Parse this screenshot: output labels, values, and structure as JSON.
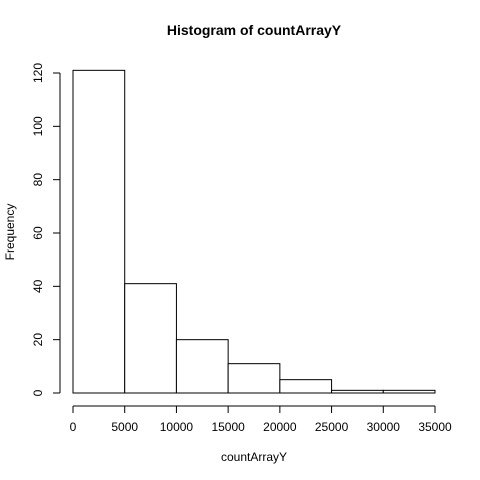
{
  "chart_data": {
    "type": "bar",
    "title": "Histogram of countArrayY",
    "xlabel": "countArrayY",
    "ylabel": "Frequency",
    "bins": [
      {
        "x0": 0,
        "x1": 5000,
        "count": 121
      },
      {
        "x0": 5000,
        "x1": 10000,
        "count": 41
      },
      {
        "x0": 10000,
        "x1": 15000,
        "count": 20
      },
      {
        "x0": 15000,
        "x1": 20000,
        "count": 11
      },
      {
        "x0": 20000,
        "x1": 25000,
        "count": 5
      },
      {
        "x0": 25000,
        "x1": 30000,
        "count": 1
      },
      {
        "x0": 30000,
        "x1": 35000,
        "count": 1
      }
    ],
    "xlim": [
      0,
      35000
    ],
    "ylim": [
      0,
      120
    ],
    "xticks": [
      "0",
      "5000",
      "10000",
      "15000",
      "20000",
      "25000",
      "30000",
      "35000"
    ],
    "yticks": [
      "0",
      "20",
      "40",
      "60",
      "80",
      "100",
      "120"
    ],
    "grid": false,
    "legend": false
  }
}
